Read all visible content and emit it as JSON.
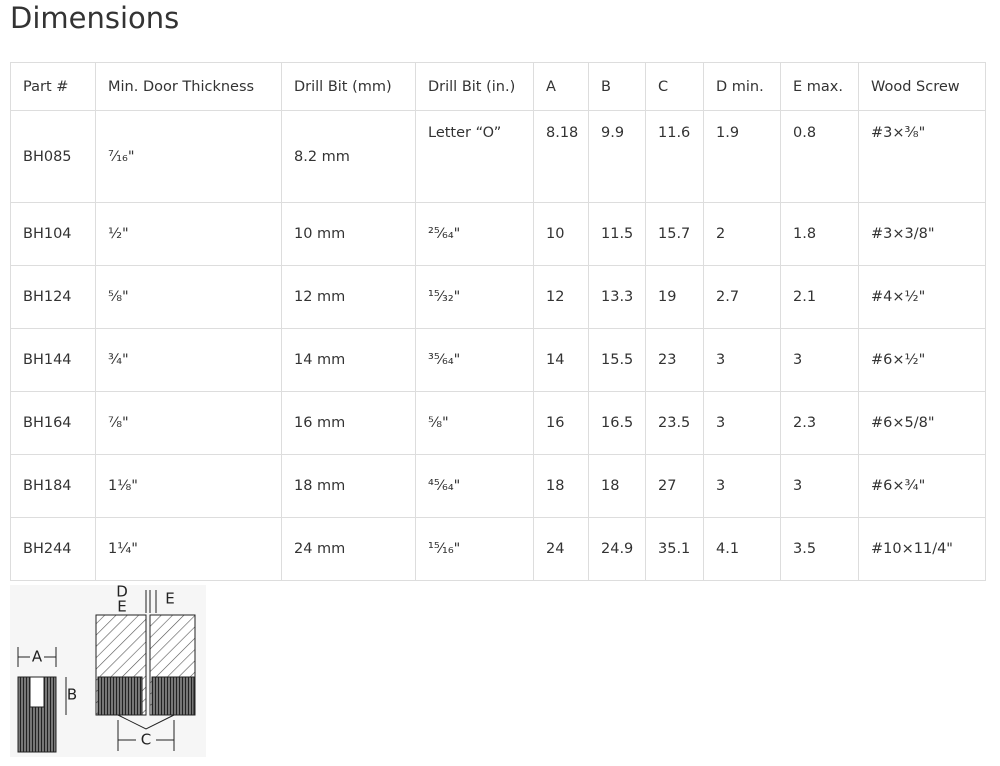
{
  "header": {
    "title": "Dimensions"
  },
  "table": {
    "columns": [
      "Part #",
      "Min. Door Thickness",
      "Drill Bit (mm)",
      "Drill Bit (in.)",
      "A",
      "B",
      "C",
      "D min.",
      "E max.",
      "Wood Screw"
    ],
    "rows": [
      [
        "BH085",
        "⁷⁄₁₆\"",
        "8.2 mm",
        "Letter “O”",
        "8.18",
        "9.9",
        "11.6",
        "1.9",
        "0.8",
        "#3×³⁄₈\""
      ],
      [
        "BH104",
        "½\"",
        "10 mm",
        "²⁵⁄₆₄\"",
        "10",
        "11.5",
        "15.7",
        "2",
        "1.8",
        "#3×3/8\""
      ],
      [
        "BH124",
        "⅝\"",
        "12 mm",
        "¹⁵⁄₃₂\"",
        "12",
        "13.3",
        "19",
        "2.7",
        "2.1",
        "#4×½\""
      ],
      [
        "BH144",
        "¾\"",
        "14 mm",
        "³⁵⁄₆₄\"",
        "14",
        "15.5",
        "23",
        "3",
        "3",
        "#6×½\""
      ],
      [
        "BH164",
        "⅞\"",
        "16 mm",
        "⅝\"",
        "16",
        "16.5",
        "23.5",
        "3",
        "2.3",
        "#6×5/8\""
      ],
      [
        "BH184",
        "1⅛\"",
        "18 mm",
        "⁴⁵⁄₆₄\"",
        "18",
        "18",
        "27",
        "3",
        "3",
        "#6×¾\""
      ],
      [
        "BH244",
        "1¼\"",
        "24 mm",
        "¹⁵⁄₁₆\"",
        "24",
        "24.9",
        "35.1",
        "4.1",
        "3.5",
        "#10×11/4\""
      ]
    ]
  },
  "diagram": {
    "labels": [
      "A",
      "B",
      "C",
      "D",
      "E",
      "E"
    ]
  }
}
